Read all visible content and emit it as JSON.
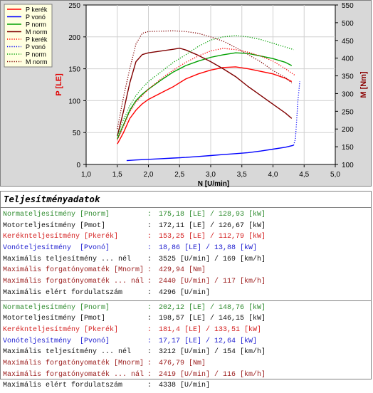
{
  "chart_data": {
    "type": "line",
    "xlabel": "N [U/min]",
    "ylabel_left": "P [LE]",
    "ylabel_right": "M [Nm]",
    "xlim": [
      1.0,
      5.0
    ],
    "ylim_left": [
      0,
      250
    ],
    "ylim_right": [
      100,
      550
    ],
    "x_ticks": [
      "1,0",
      "1,5",
      "2,0",
      "2,5",
      "3,0",
      "3,5",
      "4,0",
      "4,5",
      "5,0"
    ],
    "y_ticks_left": [
      "0",
      "50",
      "100",
      "150",
      "200",
      "250"
    ],
    "y_ticks_right": [
      "100",
      "150",
      "200",
      "250",
      "300",
      "350",
      "400",
      "450",
      "500",
      "550"
    ],
    "grid": true,
    "legend_position": "top-left",
    "legend": [
      {
        "name": "P kerék",
        "color": "#ff0000",
        "style": "solid"
      },
      {
        "name": "P vonó",
        "color": "#0000ff",
        "style": "solid"
      },
      {
        "name": "P norm",
        "color": "#00a000",
        "style": "solid"
      },
      {
        "name": "M norm",
        "color": "#800000",
        "style": "solid"
      },
      {
        "name": "P kerék",
        "color": "#ff0000",
        "style": "dotted"
      },
      {
        "name": "P vonó",
        "color": "#0000ff",
        "style": "dotted"
      },
      {
        "name": "P norm",
        "color": "#00a000",
        "style": "dotted"
      },
      {
        "name": "M norm",
        "color": "#800000",
        "style": "dotted"
      }
    ],
    "series": [
      {
        "name": "P kerék",
        "color": "#ff0000",
        "style": "solid",
        "axis": "left",
        "x": [
          1.5,
          1.6,
          1.7,
          1.8,
          1.9,
          2.0,
          2.2,
          2.4,
          2.6,
          2.8,
          3.0,
          3.2,
          3.4,
          3.6,
          3.8,
          4.0,
          4.2,
          4.3
        ],
        "y": [
          32,
          50,
          72,
          85,
          95,
          102,
          112,
          122,
          134,
          142,
          148,
          152,
          153,
          150,
          146,
          142,
          135,
          130
        ]
      },
      {
        "name": "P vonó",
        "color": "#0000ff",
        "style": "solid",
        "axis": "left",
        "x": [
          1.65,
          1.8,
          2.0,
          2.2,
          2.4,
          2.6,
          2.8,
          3.0,
          3.2,
          3.4,
          3.6,
          3.8,
          4.0,
          4.2,
          4.33
        ],
        "y": [
          6,
          7,
          8,
          9,
          10,
          11,
          12.5,
          14,
          15.5,
          17,
          18.5,
          21,
          24,
          27,
          30
        ]
      },
      {
        "name": "P norm",
        "color": "#00a000",
        "style": "solid",
        "axis": "left",
        "x": [
          1.5,
          1.6,
          1.7,
          1.8,
          1.9,
          2.0,
          2.2,
          2.4,
          2.6,
          2.8,
          3.0,
          3.2,
          3.4,
          3.6,
          3.8,
          4.0,
          4.2,
          4.3
        ],
        "y": [
          40,
          62,
          85,
          100,
          110,
          118,
          132,
          145,
          155,
          162,
          168,
          172,
          175,
          174,
          170,
          166,
          160,
          155
        ]
      },
      {
        "name": "M norm",
        "color": "#800000",
        "style": "solid",
        "axis": "right",
        "x": [
          1.5,
          1.6,
          1.7,
          1.8,
          1.9,
          2.0,
          2.2,
          2.4,
          2.5,
          2.6,
          2.8,
          3.0,
          3.2,
          3.4,
          3.6,
          3.8,
          4.0,
          4.2,
          4.3
        ],
        "y": [
          180,
          250,
          330,
          390,
          410,
          415,
          420,
          425,
          428,
          423,
          408,
          390,
          370,
          348,
          320,
          295,
          270,
          245,
          230
        ]
      },
      {
        "name": "P kerék",
        "color": "#ff0000",
        "style": "dotted",
        "axis": "left",
        "x": [
          1.5,
          1.6,
          1.7,
          1.8,
          1.9,
          2.0,
          2.2,
          2.4,
          2.6,
          2.8,
          3.0,
          3.2,
          3.4,
          3.6,
          3.8,
          4.0,
          4.2,
          4.35
        ],
        "y": [
          38,
          60,
          82,
          98,
          108,
          118,
          134,
          148,
          160,
          170,
          178,
          182,
          180,
          176,
          170,
          162,
          150,
          140
        ]
      },
      {
        "name": "P vonó",
        "color": "#0000ff",
        "style": "dotted",
        "axis": "left",
        "x": [
          4.33,
          4.36,
          4.38,
          4.4,
          4.42,
          4.43
        ],
        "y": [
          30,
          40,
          70,
          100,
          120,
          130
        ]
      },
      {
        "name": "P norm",
        "color": "#00a000",
        "style": "dotted",
        "axis": "left",
        "x": [
          1.5,
          1.6,
          1.7,
          1.8,
          1.9,
          2.0,
          2.2,
          2.4,
          2.6,
          2.8,
          3.0,
          3.2,
          3.4,
          3.6,
          3.8,
          4.0,
          4.2,
          4.33
        ],
        "y": [
          45,
          70,
          92,
          108,
          120,
          130,
          145,
          160,
          172,
          185,
          195,
          200,
          202,
          200,
          196,
          190,
          184,
          180
        ]
      },
      {
        "name": "M norm",
        "color": "#800000",
        "style": "dotted",
        "axis": "right",
        "x": [
          1.5,
          1.6,
          1.7,
          1.8,
          1.9,
          2.0,
          2.2,
          2.4,
          2.6,
          2.8,
          3.0,
          3.2,
          3.4,
          3.6,
          3.8,
          4.0,
          4.2,
          4.3
        ],
        "y": [
          200,
          290,
          370,
          440,
          470,
          475,
          476,
          477,
          475,
          470,
          460,
          448,
          430,
          410,
          390,
          365,
          345,
          330
        ]
      }
    ]
  },
  "report": {
    "title": "Teljesítményadatok",
    "separator": ":",
    "blocks": [
      [
        {
          "label": "Normateljesítmény [Pnorm]",
          "value": "175,18 [LE] / 128,93 [kW]",
          "color": "green"
        },
        {
          "label": "Motorteljesítmény [Pmot]",
          "value": "172,11 [LE] / 126,67 [kW]",
          "color": "black"
        },
        {
          "label": "Keréknteljesítmény [Pkerék]",
          "value": "153,25 [LE] / 112,79 [kW]",
          "color": "red"
        },
        {
          "label": "Vonóteljesítmény  [Pvonó]",
          "value": "18,86 [LE] / 13,88 [kW]",
          "color": "blue"
        },
        {
          "label": "Maximális teljesítmény ... nél",
          "value": "3525 [U/min] / 169 [km/h]",
          "color": "black"
        },
        {
          "label": "Maximális forgatónyomaték [Mnorm]",
          "value": "429,94 [Nm]",
          "color": "brown"
        },
        {
          "label": "Maximális forgatónyomaték ... nál",
          "value": "2440 [U/min] / 117 [km/h]",
          "color": "brown"
        },
        {
          "label": "Maximális elért fordulatszám",
          "value": "4296 [U/min]",
          "color": "black"
        }
      ],
      [
        {
          "label": "Normateljesítmény [Pnorm]",
          "value": "202,12 [LE] / 148,76 [kW]",
          "color": "green"
        },
        {
          "label": "Motorteljesítmény [Pmot]",
          "value": "198,57 [LE] / 146,15 [kW]",
          "color": "black"
        },
        {
          "label": "Keréknteljesítmény [Pkerék]",
          "value": "181,4 [LE] / 133,51 [kW]",
          "color": "red"
        },
        {
          "label": "Vonóteljesítmény  [Pvonó]",
          "value": "17,17 [LE] / 12,64 [kW]",
          "color": "blue"
        },
        {
          "label": "Maximális teljesítmény ... nél",
          "value": "3212 [U/min] / 154 [km/h]",
          "color": "black"
        },
        {
          "label": "Maximális forgatónyomaték [Mnorm]",
          "value": "476,79 [Nm]",
          "color": "brown"
        },
        {
          "label": "Maximális forgatónyomaték ... nál",
          "value": "2419 [U/min] / 116 [km/h]",
          "color": "brown"
        },
        {
          "label": "Maximális elért fordulatszám",
          "value": "4338 [U/min]",
          "color": "black"
        }
      ]
    ]
  }
}
